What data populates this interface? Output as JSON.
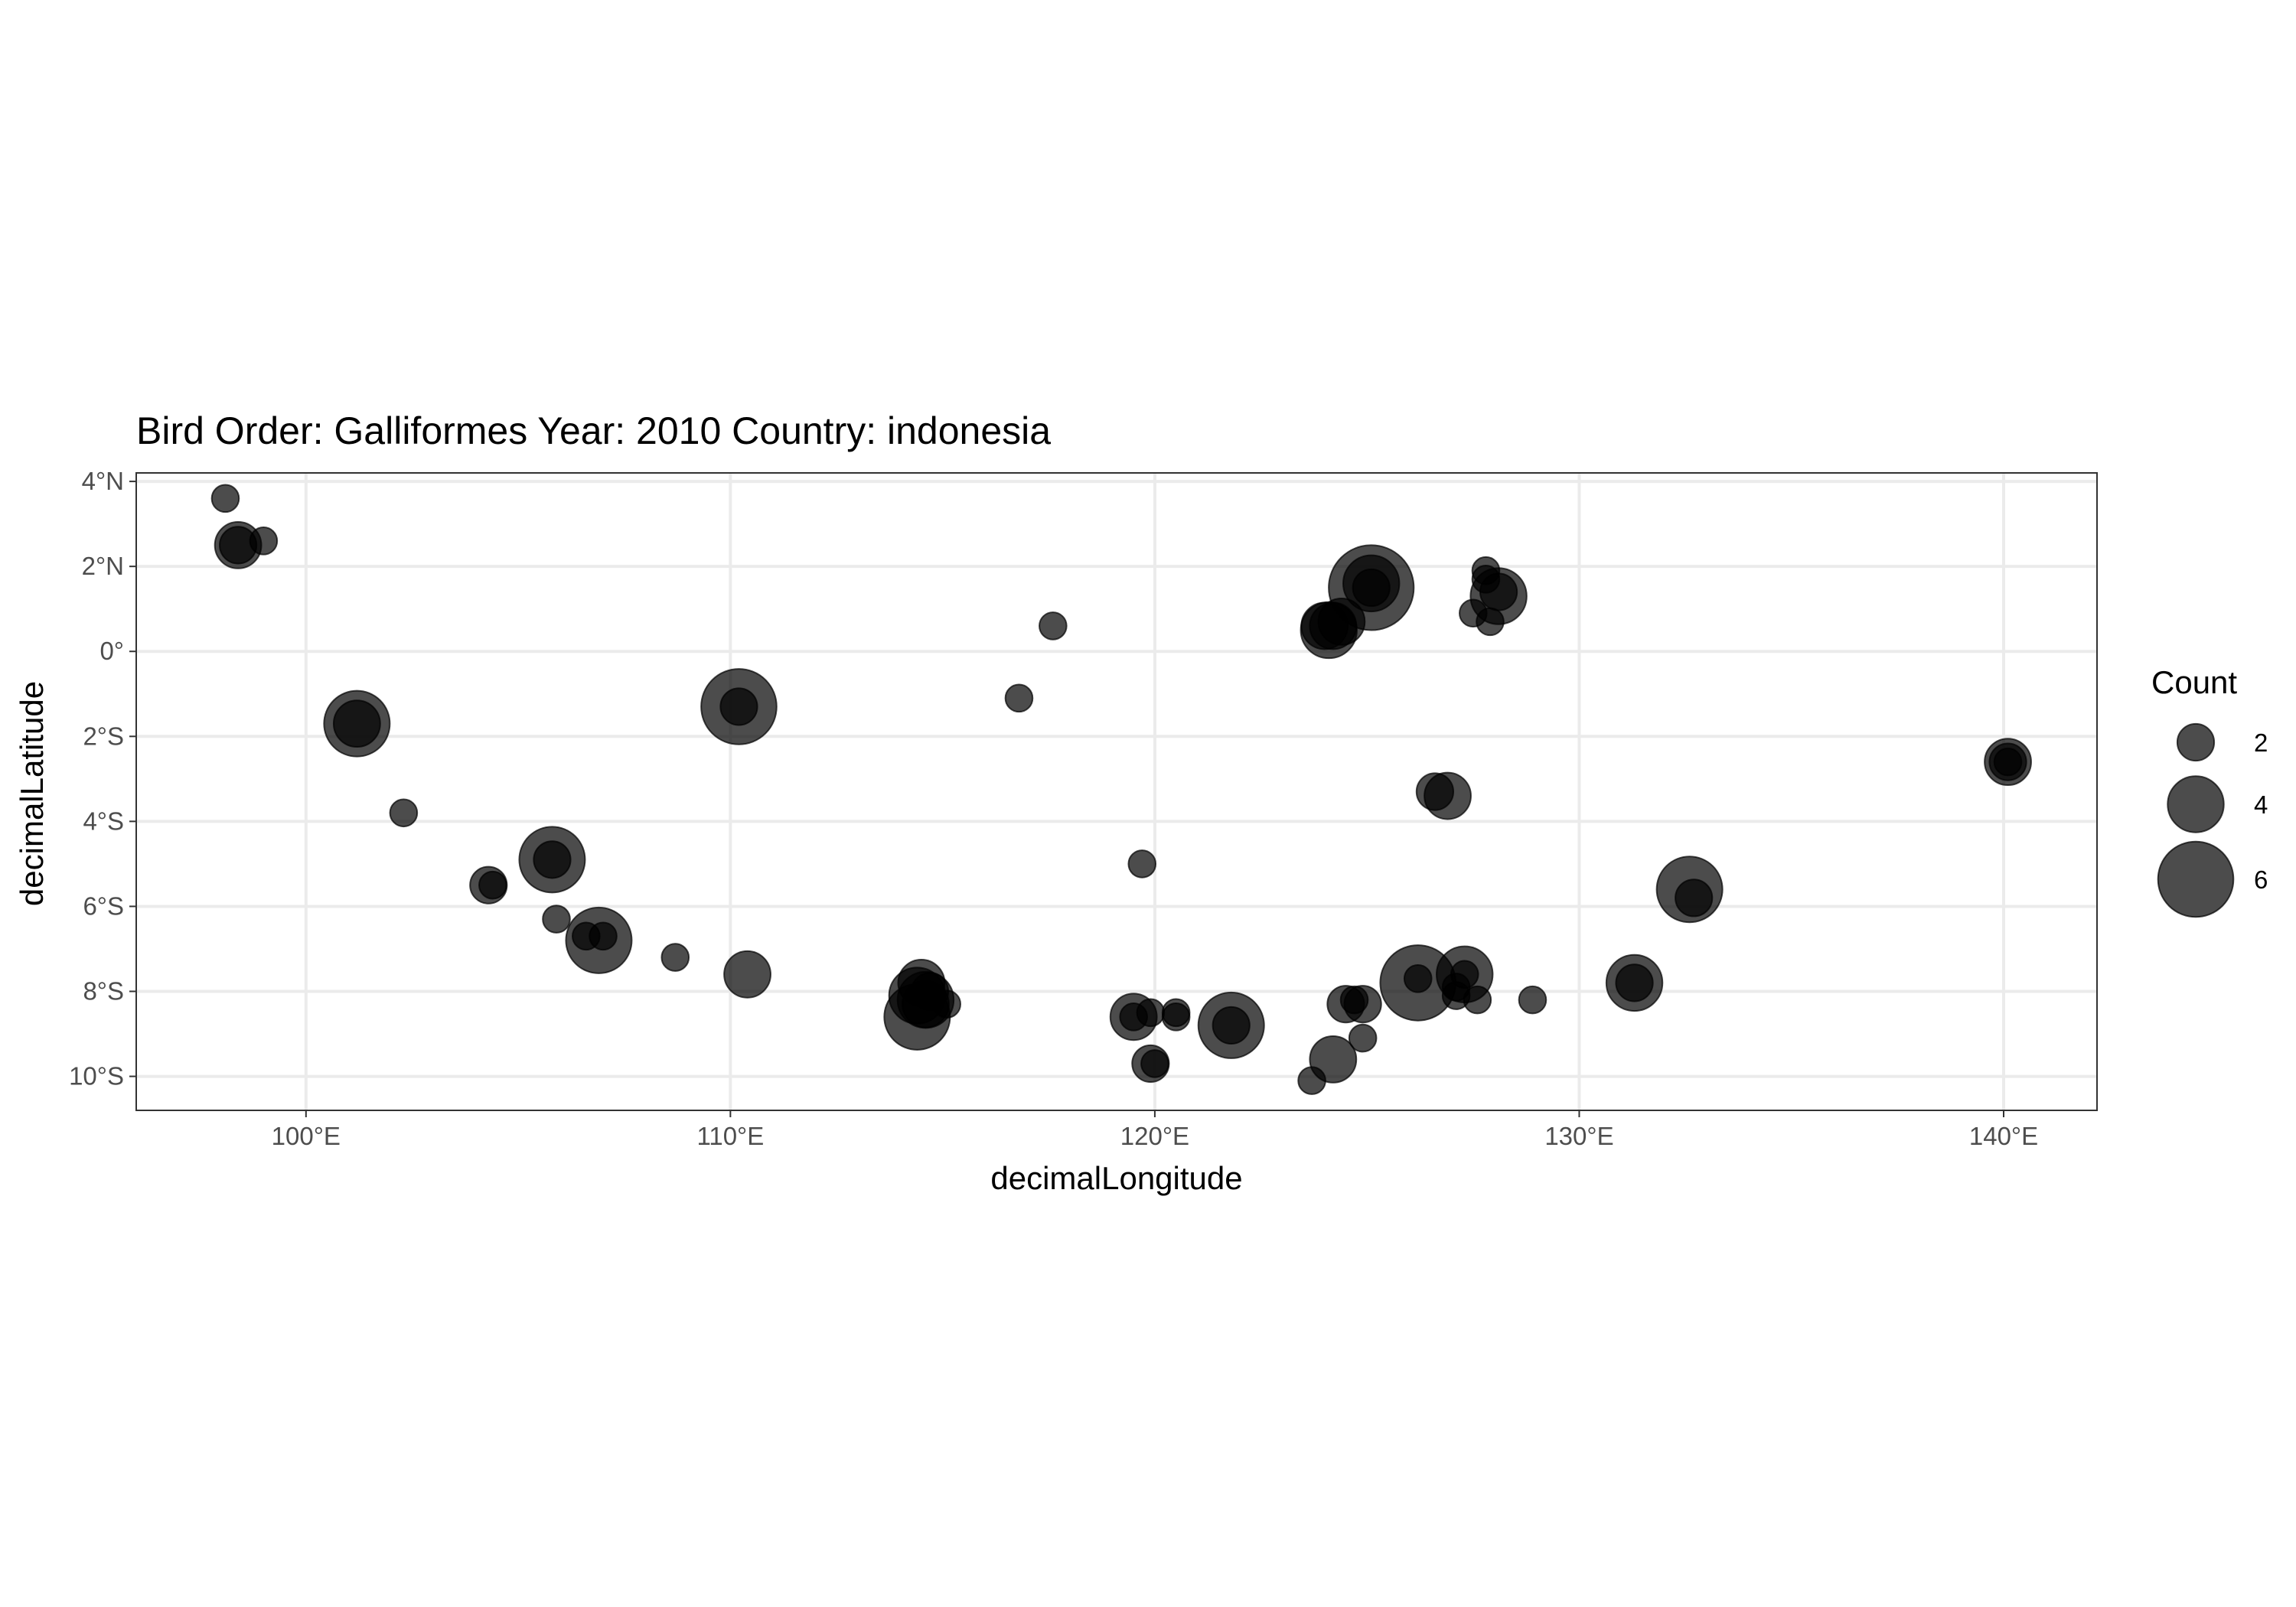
{
  "chart_data": {
    "type": "scatter",
    "title": "Bird Order: Galliformes Year: 2010 Country: indonesia",
    "xlabel": "decimalLongitude",
    "ylabel": "decimalLatitude",
    "xlim": [
      96.0,
      142.2
    ],
    "ylim": [
      -10.8,
      4.2
    ],
    "x_ticks": [
      {
        "value": 100,
        "label": "100°E"
      },
      {
        "value": 110,
        "label": "110°E"
      },
      {
        "value": 120,
        "label": "120°E"
      },
      {
        "value": 130,
        "label": "130°E"
      },
      {
        "value": 140,
        "label": "140°E"
      }
    ],
    "y_ticks": [
      {
        "value": 4,
        "label": "4°N"
      },
      {
        "value": 2,
        "label": "2°N"
      },
      {
        "value": 0,
        "label": "0°"
      },
      {
        "value": -2,
        "label": "2°S"
      },
      {
        "value": -4,
        "label": "4°S"
      },
      {
        "value": -6,
        "label": "6°S"
      },
      {
        "value": -8,
        "label": "8°S"
      },
      {
        "value": -10,
        "label": "10°S"
      }
    ],
    "grid": true,
    "point_color": "#000000",
    "point_alpha": 0.7,
    "size_legend": {
      "title": "Count",
      "position": "right",
      "entries": [
        {
          "value": 2,
          "label": "2"
        },
        {
          "value": 4,
          "label": "4"
        },
        {
          "value": 6,
          "label": "6"
        }
      ]
    },
    "points": [
      {
        "x": 98.1,
        "y": 3.6,
        "count": 1
      },
      {
        "x": 98.4,
        "y": 2.5,
        "count": 3
      },
      {
        "x": 98.4,
        "y": 2.5,
        "count": 2
      },
      {
        "x": 99.0,
        "y": 2.6,
        "count": 1
      },
      {
        "x": 101.2,
        "y": -1.7,
        "count": 5
      },
      {
        "x": 101.2,
        "y": -1.7,
        "count": 3
      },
      {
        "x": 102.3,
        "y": -3.8,
        "count": 1
      },
      {
        "x": 104.3,
        "y": -5.5,
        "count": 2
      },
      {
        "x": 104.4,
        "y": -5.5,
        "count": 1
      },
      {
        "x": 105.8,
        "y": -4.9,
        "count": 5
      },
      {
        "x": 105.8,
        "y": -4.9,
        "count": 2
      },
      {
        "x": 105.9,
        "y": -6.3,
        "count": 1
      },
      {
        "x": 106.6,
        "y": -6.7,
        "count": 1
      },
      {
        "x": 106.9,
        "y": -6.8,
        "count": 5
      },
      {
        "x": 107.0,
        "y": -6.7,
        "count": 1
      },
      {
        "x": 108.7,
        "y": -7.2,
        "count": 1
      },
      {
        "x": 110.2,
        "y": -1.3,
        "count": 6
      },
      {
        "x": 110.2,
        "y": -1.3,
        "count": 2
      },
      {
        "x": 110.4,
        "y": -7.6,
        "count": 3
      },
      {
        "x": 114.4,
        "y": -8.6,
        "count": 5
      },
      {
        "x": 114.4,
        "y": -8.1,
        "count": 4
      },
      {
        "x": 114.5,
        "y": -7.8,
        "count": 3
      },
      {
        "x": 114.6,
        "y": -8.2,
        "count": 4
      },
      {
        "x": 114.6,
        "y": -8.3,
        "count": 3
      },
      {
        "x": 114.7,
        "y": -8.0,
        "count": 2
      },
      {
        "x": 115.1,
        "y": -8.3,
        "count": 1
      },
      {
        "x": 116.8,
        "y": -1.1,
        "count": 1
      },
      {
        "x": 117.6,
        "y": 0.6,
        "count": 1
      },
      {
        "x": 119.5,
        "y": -8.6,
        "count": 3
      },
      {
        "x": 119.5,
        "y": -8.6,
        "count": 1
      },
      {
        "x": 119.7,
        "y": -5.0,
        "count": 1
      },
      {
        "x": 119.9,
        "y": -8.5,
        "count": 1
      },
      {
        "x": 119.9,
        "y": -9.7,
        "count": 2
      },
      {
        "x": 120.0,
        "y": -9.7,
        "count": 1
      },
      {
        "x": 120.5,
        "y": -8.6,
        "count": 1
      },
      {
        "x": 120.5,
        "y": -8.5,
        "count": 1
      },
      {
        "x": 121.8,
        "y": -8.8,
        "count": 5
      },
      {
        "x": 121.8,
        "y": -8.8,
        "count": 2
      },
      {
        "x": 123.7,
        "y": -10.1,
        "count": 1
      },
      {
        "x": 124.0,
        "y": 0.6,
        "count": 3
      },
      {
        "x": 124.1,
        "y": 0.5,
        "count": 4
      },
      {
        "x": 124.2,
        "y": 0.6,
        "count": 3
      },
      {
        "x": 124.4,
        "y": 0.7,
        "count": 3
      },
      {
        "x": 124.2,
        "y": -9.6,
        "count": 3
      },
      {
        "x": 124.5,
        "y": -8.3,
        "count": 2
      },
      {
        "x": 124.7,
        "y": -8.2,
        "count": 1
      },
      {
        "x": 124.9,
        "y": -8.3,
        "count": 2
      },
      {
        "x": 124.9,
        "y": -9.1,
        "count": 1
      },
      {
        "x": 125.1,
        "y": 1.5,
        "count": 7
      },
      {
        "x": 125.1,
        "y": 1.6,
        "count": 4
      },
      {
        "x": 125.1,
        "y": 1.5,
        "count": 2
      },
      {
        "x": 126.2,
        "y": -7.8,
        "count": 6
      },
      {
        "x": 126.2,
        "y": -7.7,
        "count": 1
      },
      {
        "x": 126.6,
        "y": -3.3,
        "count": 2
      },
      {
        "x": 126.9,
        "y": -3.4,
        "count": 3
      },
      {
        "x": 127.1,
        "y": -7.9,
        "count": 1
      },
      {
        "x": 127.1,
        "y": -8.1,
        "count": 1
      },
      {
        "x": 127.3,
        "y": -7.6,
        "count": 4
      },
      {
        "x": 127.3,
        "y": -7.6,
        "count": 1
      },
      {
        "x": 127.5,
        "y": 0.9,
        "count": 1
      },
      {
        "x": 127.6,
        "y": -8.2,
        "count": 1
      },
      {
        "x": 127.8,
        "y": 1.9,
        "count": 1
      },
      {
        "x": 127.8,
        "y": 1.7,
        "count": 1
      },
      {
        "x": 127.9,
        "y": 0.7,
        "count": 1
      },
      {
        "x": 128.1,
        "y": 1.3,
        "count": 4
      },
      {
        "x": 128.1,
        "y": 1.4,
        "count": 2
      },
      {
        "x": 128.9,
        "y": -8.2,
        "count": 1
      },
      {
        "x": 131.3,
        "y": -7.8,
        "count": 4
      },
      {
        "x": 131.3,
        "y": -7.8,
        "count": 2
      },
      {
        "x": 132.6,
        "y": -5.6,
        "count": 5
      },
      {
        "x": 132.7,
        "y": -5.8,
        "count": 2
      },
      {
        "x": 140.1,
        "y": -2.6,
        "count": 3
      },
      {
        "x": 140.1,
        "y": -2.6,
        "count": 2
      },
      {
        "x": 140.1,
        "y": -2.6,
        "count": 1
      }
    ]
  }
}
